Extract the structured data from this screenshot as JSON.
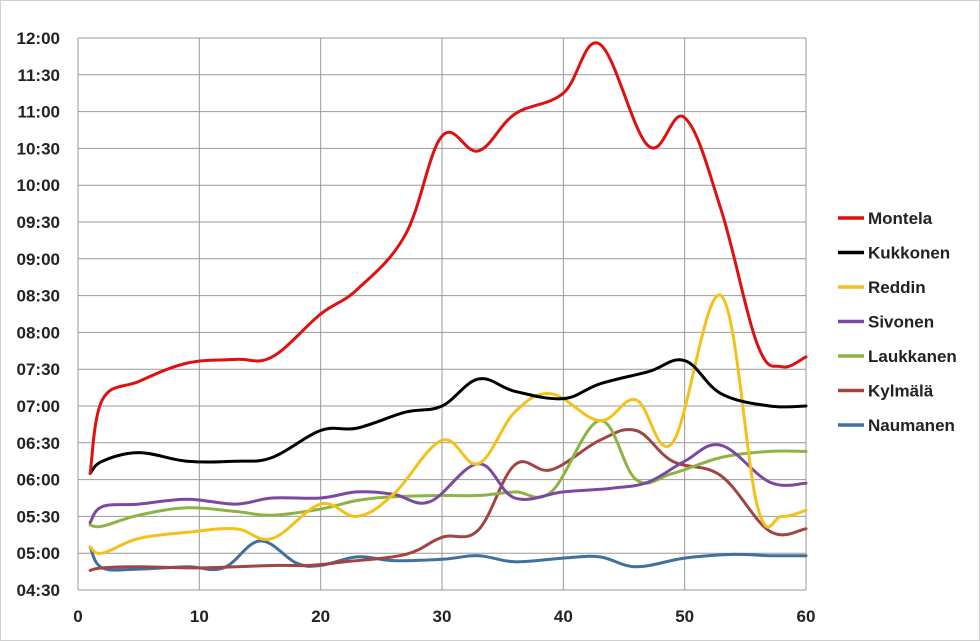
{
  "chart_data": {
    "type": "line",
    "xlabel": "",
    "ylabel": "",
    "xlim": [
      0,
      60
    ],
    "ylim": [
      "04:30",
      "12:00"
    ],
    "x_ticks": [
      "0",
      "10",
      "20",
      "30",
      "40",
      "50",
      "60"
    ],
    "y_ticks": [
      "12:00",
      "11:30",
      "11:00",
      "10:30",
      "10:00",
      "09:30",
      "09:00",
      "08:30",
      "08:00",
      "07:30",
      "07:00",
      "06:30",
      "06:00",
      "05:30",
      "05:00",
      "04:30"
    ],
    "grid": true,
    "legend_position": "right",
    "series": [
      {
        "name": "Montela",
        "color": "#dd1111",
        "x": [
          1,
          2,
          5,
          9,
          13,
          16,
          20,
          23,
          27,
          30,
          33,
          36,
          40,
          43,
          47,
          50,
          53,
          56,
          58,
          60
        ],
        "y": [
          "06:05",
          "07:05",
          "07:20",
          "07:35",
          "07:38",
          "07:40",
          "08:15",
          "08:35",
          "09:20",
          "10:40",
          "10:28",
          "10:58",
          "11:15",
          "11:55",
          "10:32",
          "10:55",
          "09:40",
          "07:50",
          "07:32",
          "07:40"
        ]
      },
      {
        "name": "Kukkonen",
        "color": "#000000",
        "x": [
          1,
          2,
          5,
          9,
          13,
          16,
          20,
          23,
          27,
          30,
          33,
          36,
          40,
          43,
          47,
          50,
          53,
          57,
          60
        ],
        "y": [
          "06:05",
          "06:15",
          "06:22",
          "06:15",
          "06:15",
          "06:18",
          "06:40",
          "06:42",
          "06:55",
          "07:00",
          "07:22",
          "07:12",
          "07:06",
          "07:18",
          "07:28",
          "07:37",
          "07:10",
          "07:00",
          "07:00"
        ]
      },
      {
        "name": "Reddin",
        "color": "#f2c21a",
        "x": [
          1,
          2,
          5,
          9,
          13,
          16,
          20,
          23,
          26,
          30,
          33,
          36,
          39,
          43,
          46,
          49,
          53,
          56,
          58,
          60
        ],
        "y": [
          "05:05",
          "05:00",
          "05:12",
          "05:17",
          "05:20",
          "05:12",
          "05:40",
          "05:30",
          "05:48",
          "06:32",
          "06:13",
          "06:55",
          "07:10",
          "06:48",
          "07:05",
          "06:30",
          "08:30",
          "05:38",
          "05:30",
          "05:35"
        ]
      },
      {
        "name": "Sivonen",
        "color": "#7b4aa0",
        "x": [
          1,
          2,
          5,
          9,
          13,
          16,
          20,
          23,
          26,
          29,
          33,
          36,
          40,
          44,
          47,
          50,
          53,
          57,
          60
        ],
        "y": [
          "05:25",
          "05:38",
          "05:40",
          "05:44",
          "05:40",
          "05:45",
          "05:45",
          "05:50",
          "05:48",
          "05:42",
          "06:13",
          "05:45",
          "05:50",
          "05:53",
          "05:58",
          "06:15",
          "06:28",
          "05:58",
          "05:57"
        ]
      },
      {
        "name": "Laukkanen",
        "color": "#8cb444",
        "x": [
          1,
          2,
          5,
          9,
          13,
          16,
          20,
          23,
          26,
          30,
          33,
          36,
          39,
          43,
          46,
          49,
          53,
          57,
          60
        ],
        "y": [
          "05:23",
          "05:22",
          "05:31",
          "05:37",
          "05:34",
          "05:31",
          "05:36",
          "05:43",
          "05:46",
          "05:47",
          "05:47",
          "05:50",
          "05:50",
          "06:48",
          "06:00",
          "06:05",
          "06:18",
          "06:23",
          "06:23"
        ]
      },
      {
        "name": "Kylmälä",
        "color": "#a04444",
        "x": [
          1,
          2,
          5,
          10,
          16,
          19,
          22,
          27,
          30,
          33,
          36,
          39,
          43,
          46,
          49,
          53,
          57,
          60
        ],
        "y": [
          "04:46",
          "04:48",
          "04:49",
          "04:48",
          "04:50",
          "04:50",
          "04:53",
          "04:59",
          "05:13",
          "05:19",
          "06:12",
          "06:08",
          "06:32",
          "06:40",
          "06:15",
          "06:03",
          "05:18",
          "05:20"
        ]
      },
      {
        "name": "Naumanen",
        "color": "#41709c",
        "x": [
          1,
          2,
          5,
          9,
          12,
          15,
          18,
          20,
          23,
          26,
          30,
          33,
          36,
          40,
          43,
          46,
          50,
          54,
          57,
          60
        ],
        "y": [
          "05:05",
          "04:48",
          "04:47",
          "04:49",
          "04:48",
          "05:10",
          "04:52",
          "04:50",
          "04:57",
          "04:54",
          "04:55",
          "04:58",
          "04:53",
          "04:56",
          "04:57",
          "04:49",
          "04:56",
          "04:59",
          "04:58",
          "04:58"
        ]
      }
    ]
  }
}
